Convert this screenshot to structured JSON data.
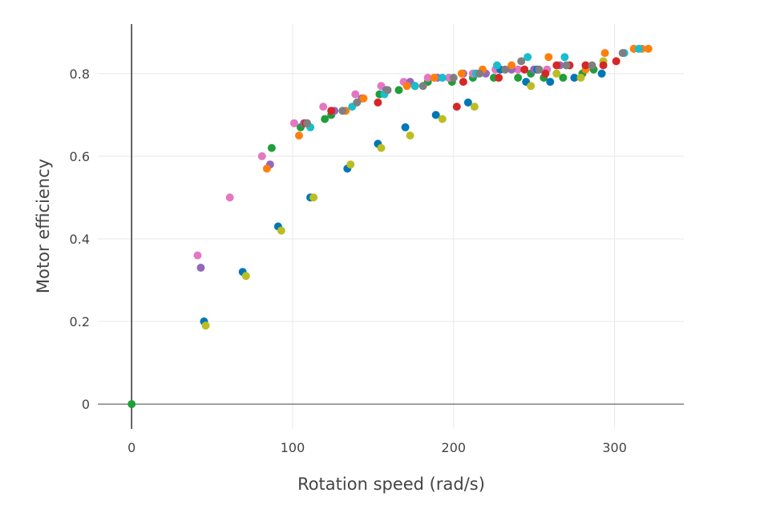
{
  "chart_data": {
    "type": "scatter",
    "xlabel": "Rotation speed (rad/s)",
    "ylabel": "Motor efficiency",
    "xlim": [
      -21,
      343
    ],
    "ylim": [
      -0.06,
      0.92
    ],
    "xticks": [
      0,
      100,
      200,
      300
    ],
    "xtick_labels": [
      "0",
      "100",
      "200",
      "300"
    ],
    "yticks": [
      0,
      0.2,
      0.4,
      0.6,
      0.8
    ],
    "ytick_labels": [
      "0",
      "0.2",
      "0.4",
      "0.6",
      "0.8"
    ],
    "grid": true,
    "legend": "none",
    "series": [
      {
        "color": "#1f9e3a",
        "points": [
          [
            0,
            0
          ],
          [
            87,
            0.62
          ],
          [
            105,
            0.67
          ],
          [
            120,
            0.69
          ],
          [
            124,
            0.7
          ],
          [
            154,
            0.75
          ],
          [
            166,
            0.76
          ],
          [
            184,
            0.78
          ],
          [
            199,
            0.78
          ],
          [
            212,
            0.79
          ],
          [
            225,
            0.79
          ],
          [
            240,
            0.79
          ],
          [
            248,
            0.8
          ],
          [
            256,
            0.79
          ],
          [
            268,
            0.79
          ],
          [
            280,
            0.8
          ],
          [
            287,
            0.81
          ]
        ]
      },
      {
        "color": "#e377c2",
        "points": [
          [
            41,
            0.36
          ],
          [
            61,
            0.5
          ],
          [
            81,
            0.6
          ],
          [
            101,
            0.68
          ],
          [
            119,
            0.72
          ],
          [
            139,
            0.75
          ],
          [
            155,
            0.77
          ],
          [
            169,
            0.78
          ],
          [
            184,
            0.79
          ],
          [
            197,
            0.79
          ],
          [
            212,
            0.8
          ],
          [
            226,
            0.81
          ],
          [
            240,
            0.81
          ],
          [
            258,
            0.81
          ],
          [
            272,
            0.82
          ]
        ]
      },
      {
        "color": "#9467bd",
        "points": [
          [
            43,
            0.33
          ],
          [
            86,
            0.58
          ],
          [
            107,
            0.68
          ],
          [
            126,
            0.71
          ],
          [
            143,
            0.74
          ],
          [
            158,
            0.76
          ],
          [
            173,
            0.78
          ],
          [
            190,
            0.79
          ],
          [
            206,
            0.8
          ],
          [
            220,
            0.8
          ],
          [
            236,
            0.81
          ],
          [
            250,
            0.81
          ],
          [
            266,
            0.82
          ],
          [
            282,
            0.82
          ]
        ]
      },
      {
        "color": "#0077b5",
        "points": [
          [
            45,
            0.2
          ],
          [
            69,
            0.32
          ],
          [
            91,
            0.43
          ],
          [
            111,
            0.5
          ],
          [
            134,
            0.57
          ],
          [
            153,
            0.63
          ],
          [
            170,
            0.67
          ],
          [
            189,
            0.7
          ],
          [
            209,
            0.73
          ],
          [
            229,
            0.81
          ],
          [
            245,
            0.78
          ],
          [
            252,
            0.81
          ],
          [
            260,
            0.78
          ],
          [
            275,
            0.79
          ],
          [
            292,
            0.8
          ]
        ]
      },
      {
        "color": "#bcbd22",
        "points": [
          [
            46,
            0.19
          ],
          [
            71,
            0.31
          ],
          [
            93,
            0.42
          ],
          [
            113,
            0.5
          ],
          [
            136,
            0.58
          ],
          [
            155,
            0.62
          ],
          [
            173,
            0.65
          ],
          [
            193,
            0.69
          ],
          [
            213,
            0.72
          ],
          [
            228,
            0.79
          ],
          [
            248,
            0.77
          ],
          [
            264,
            0.8
          ],
          [
            279,
            0.79
          ],
          [
            293,
            0.83
          ],
          [
            312,
            0.86
          ]
        ]
      },
      {
        "color": "#ff7f0e",
        "points": [
          [
            84,
            0.57
          ],
          [
            104,
            0.65
          ],
          [
            133,
            0.71
          ],
          [
            144,
            0.74
          ],
          [
            171,
            0.77
          ],
          [
            188,
            0.79
          ],
          [
            205,
            0.8
          ],
          [
            218,
            0.81
          ],
          [
            236,
            0.82
          ],
          [
            259,
            0.84
          ],
          [
            282,
            0.81
          ],
          [
            294,
            0.85
          ],
          [
            312,
            0.86
          ],
          [
            317,
            0.86
          ],
          [
            321,
            0.86
          ]
        ]
      },
      {
        "color": "#d62728",
        "points": [
          [
            108,
            0.68
          ],
          [
            124,
            0.71
          ],
          [
            153,
            0.73
          ],
          [
            176,
            0.77
          ],
          [
            202,
            0.72
          ],
          [
            206,
            0.78
          ],
          [
            228,
            0.79
          ],
          [
            244,
            0.81
          ],
          [
            257,
            0.8
          ],
          [
            264,
            0.82
          ],
          [
            272,
            0.82
          ],
          [
            282,
            0.82
          ],
          [
            293,
            0.82
          ],
          [
            301,
            0.83
          ]
        ]
      },
      {
        "color": "#17becf",
        "points": [
          [
            111,
            0.67
          ],
          [
            137,
            0.72
          ],
          [
            157,
            0.75
          ],
          [
            176,
            0.77
          ],
          [
            193,
            0.79
          ],
          [
            214,
            0.8
          ],
          [
            227,
            0.82
          ],
          [
            246,
            0.84
          ],
          [
            269,
            0.84
          ],
          [
            306,
            0.85
          ],
          [
            315,
            0.86
          ]
        ]
      },
      {
        "color": "#7f7f7f",
        "points": [
          [
            109,
            0.68
          ],
          [
            131,
            0.71
          ],
          [
            140,
            0.73
          ],
          [
            159,
            0.76
          ],
          [
            181,
            0.77
          ],
          [
            200,
            0.79
          ],
          [
            216,
            0.8
          ],
          [
            232,
            0.81
          ],
          [
            242,
            0.83
          ],
          [
            253,
            0.81
          ],
          [
            270,
            0.82
          ],
          [
            286,
            0.82
          ],
          [
            305,
            0.85
          ]
        ]
      }
    ]
  }
}
